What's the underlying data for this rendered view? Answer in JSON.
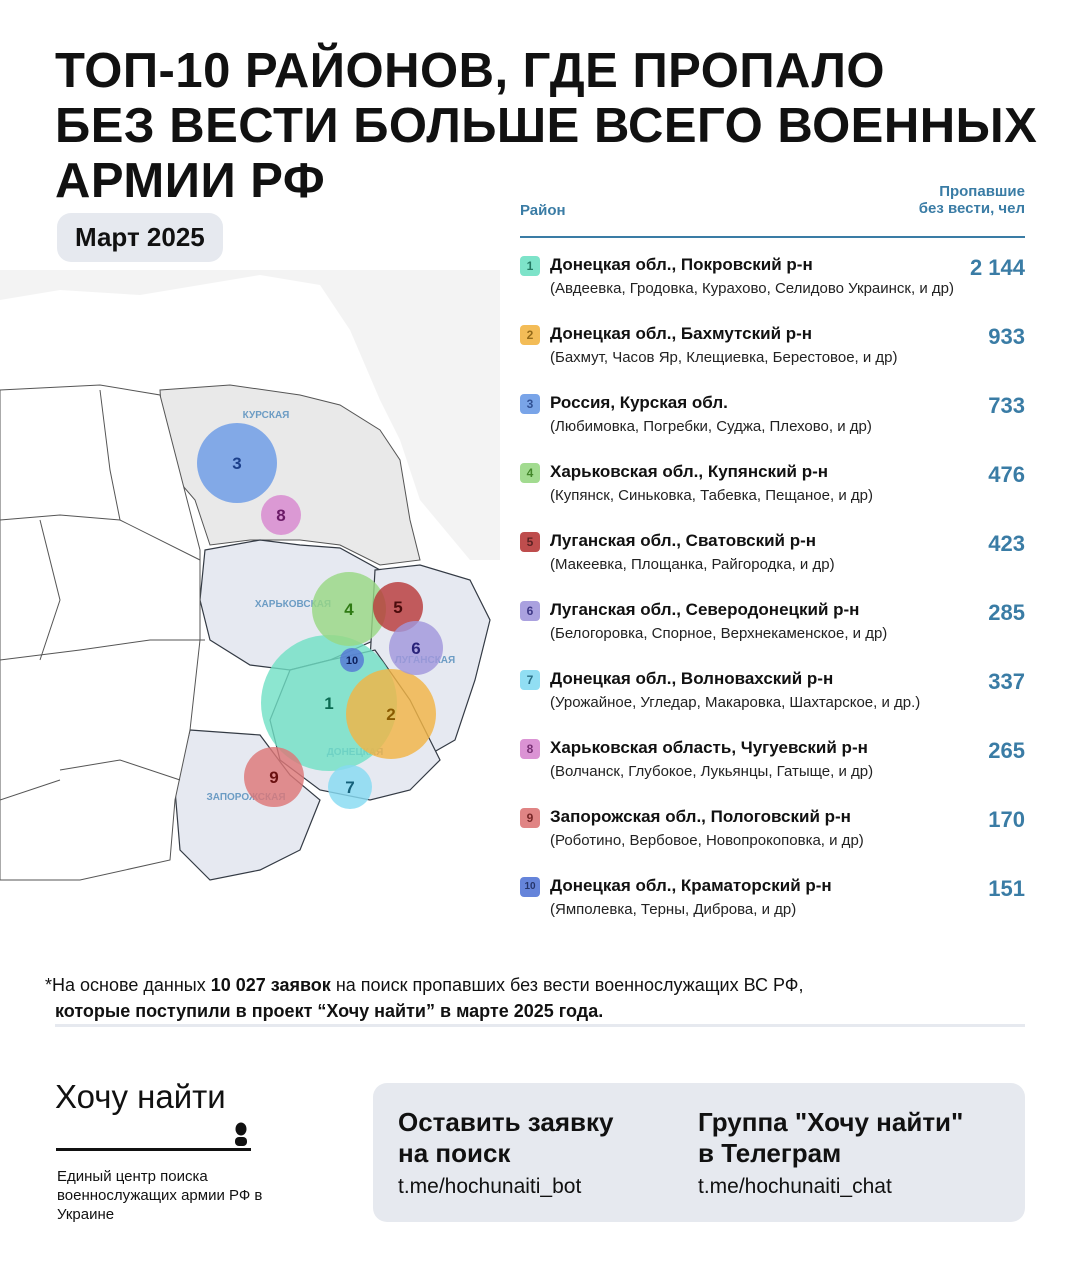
{
  "header": {
    "title_lines": [
      "ТОП-10 РАЙОНОВ, ГДЕ ПРОПАЛО",
      "БЕЗ ВЕСТИ БОЛЬШЕ ВСЕГО ВОЕННЫХ",
      "АРМИИ РФ"
    ],
    "date_badge": "Март 2025"
  },
  "map": {
    "region_labels": [
      "КУРСКАЯ",
      "ХАРЬКОВСКАЯ",
      "ЛУГАНСКАЯ",
      "ДОНЕЦКАЯ",
      "ЗАПОРОЖСКАЯ"
    ],
    "colors": {
      "russia": "#ececec",
      "ukraine_front": "#e6e9f1",
      "ukraine_other": "#ffffff",
      "border": "#333a44",
      "label": "#6c9cc4"
    }
  },
  "table": {
    "col_district": "Район",
    "col_missing_line1": "Пропавшие",
    "col_missing_line2": "без вести, чел",
    "value_color": "#3a7ca5",
    "rows": [
      {
        "rank": "1",
        "name": "Донецкая обл., Покровский р-н",
        "places": "(Авдеевка, Гродовка,  Курахово, Селидово Украинск, и др)",
        "value": "2 144",
        "color": "#6fe0c4",
        "text_color": "#0b6b52"
      },
      {
        "rank": "2",
        "name": "Донецкая обл., Бахмутский р-н",
        "places": " (Бахмут, Часов Яр, Клещиевка, Берестовое, и др)",
        "value": "933",
        "color": "#f2b545",
        "text_color": "#8a5a00"
      },
      {
        "rank": "3",
        "name": "Россия, Курская обл.",
        "places": "(Любимовка, Погребки, Суджа, Плехово, и др)",
        "value": "733",
        "color": "#6b9be6",
        "text_color": "#1b3f8a"
      },
      {
        "rank": "4",
        "name": "Харьковская обл., Купянский р-н",
        "places": "(Купянск, Синьковка, Табевка, Пещаное, и др)",
        "value": "476",
        "color": "#98d884",
        "text_color": "#2f7a14"
      },
      {
        "rank": "5",
        "name": "Луганская обл., Сватовский р-н",
        "places": "(Макеевка, Площанка, Райгородка, и др)",
        "value": "423",
        "color": "#b83a3a",
        "text_color": "#4a0c0c"
      },
      {
        "rank": "6",
        "name": "Луганская обл., Северодонецкий р-н",
        "places": "(Белогоровка, Спорное, Верхнекаменское, и др)",
        "value": "285",
        "color": "#a197dc",
        "text_color": "#2a237a"
      },
      {
        "rank": "7",
        "name": "Донецкая обл., Волновахский р-н",
        "places": "(Урожайное, Угледар, Макаровка, Шахтарское, и др.)",
        "value": "337",
        "color": "#86dbf2",
        "text_color": "#14607a"
      },
      {
        "rank": "8",
        "name": "Харьковская область, Чугуевский р-н",
        "places": "(Волчанск, Глубокое, Лукьянцы, Гатыще, и др)",
        "value": "265",
        "color": "#d888d0",
        "text_color": "#6a1a66"
      },
      {
        "rank": "9",
        "name": "Запорожская обл., Пологовский р-н",
        "places": "(Роботино, Вербовое, Новопрокоповка, и др)",
        "value": "170",
        "color": "#dd7777",
        "text_color": "#6a1010"
      },
      {
        "rank": "10",
        "name": "Донецкая обл., Краматорский р-н",
        "places": "(Ямполевка, Терны, Диброва, и др)",
        "value": "151",
        "color": "#5577d6",
        "text_color": "#0d1f5a"
      }
    ]
  },
  "note": {
    "star": "*",
    "part1": "На основе данных ",
    "bold1": "10 027 заявок",
    "part2": " на поиск пропавших без вести военнослужащих ВС РФ,",
    "bold2": "которые поступили в проект “Хочу найти” в марте 2025 года."
  },
  "footer": {
    "brand": "Хочу найти",
    "brand_sub": "Единый центр поиска военнослужащих армии РФ в Украине",
    "cta": [
      {
        "title_line1": "Оставить заявку",
        "title_line2": "на поиск",
        "link": "t.me/hochunaiti_bot"
      },
      {
        "title_line1": "Группа \"Хочу найти\"",
        "title_line2": "в Телеграм",
        "link": "t.me/hochunaiti_chat"
      }
    ]
  }
}
